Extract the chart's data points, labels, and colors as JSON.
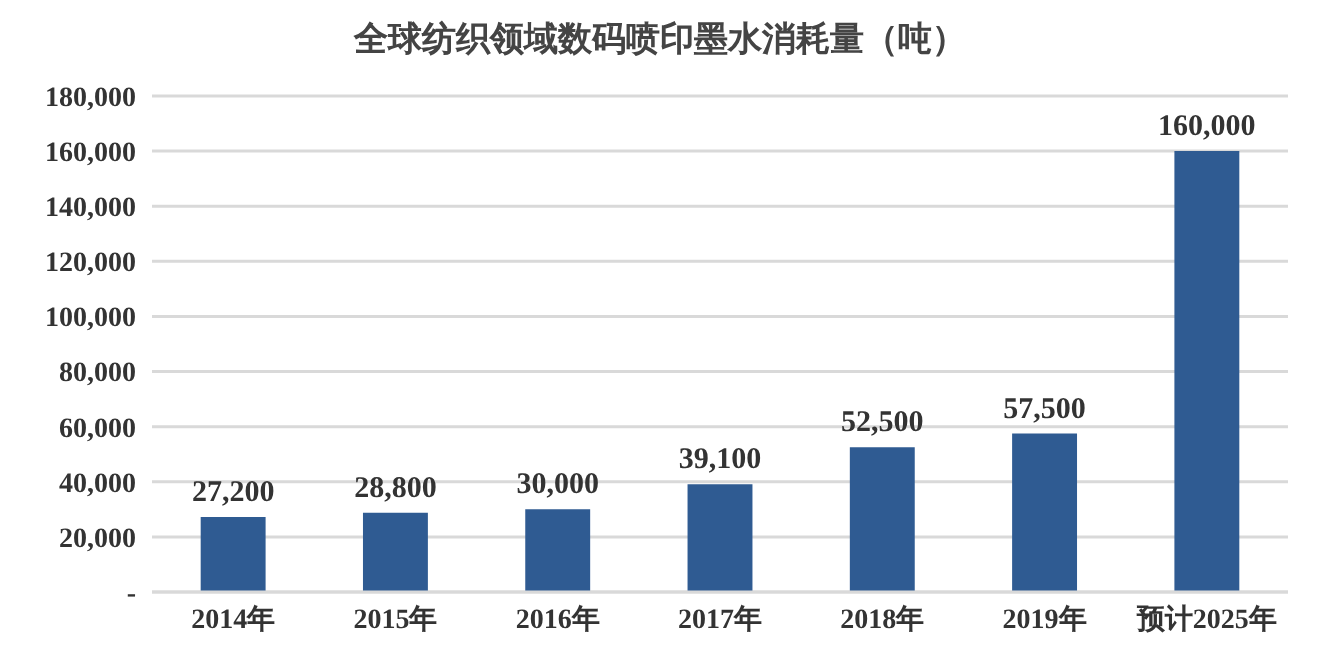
{
  "chart_data": {
    "type": "bar",
    "title": "全球纺织领域数码喷印墨水消耗量（吨）",
    "categories": [
      "2014年",
      "2015年",
      "2016年",
      "2017年",
      "2018年",
      "2019年",
      "预计2025年"
    ],
    "values": [
      27200,
      28800,
      30000,
      39100,
      52500,
      57500,
      160000
    ],
    "value_labels": [
      "27,200",
      "28,800",
      "30,000",
      "39,100",
      "52,500",
      "57,500",
      "160,000"
    ],
    "color": "#2f5b92",
    "ylim": [
      0,
      180000
    ],
    "yticks": [
      {
        "value": 0,
        "label": "-"
      },
      {
        "value": 20000,
        "label": "20,000"
      },
      {
        "value": 40000,
        "label": "40,000"
      },
      {
        "value": 60000,
        "label": "60,000"
      },
      {
        "value": 80000,
        "label": "80,000"
      },
      {
        "value": 100000,
        "label": "100,000"
      },
      {
        "value": 120000,
        "label": "120,000"
      },
      {
        "value": 140000,
        "label": "140,000"
      },
      {
        "value": 160000,
        "label": "160,000"
      },
      {
        "value": 180000,
        "label": "180,000"
      }
    ],
    "grid": "y"
  }
}
